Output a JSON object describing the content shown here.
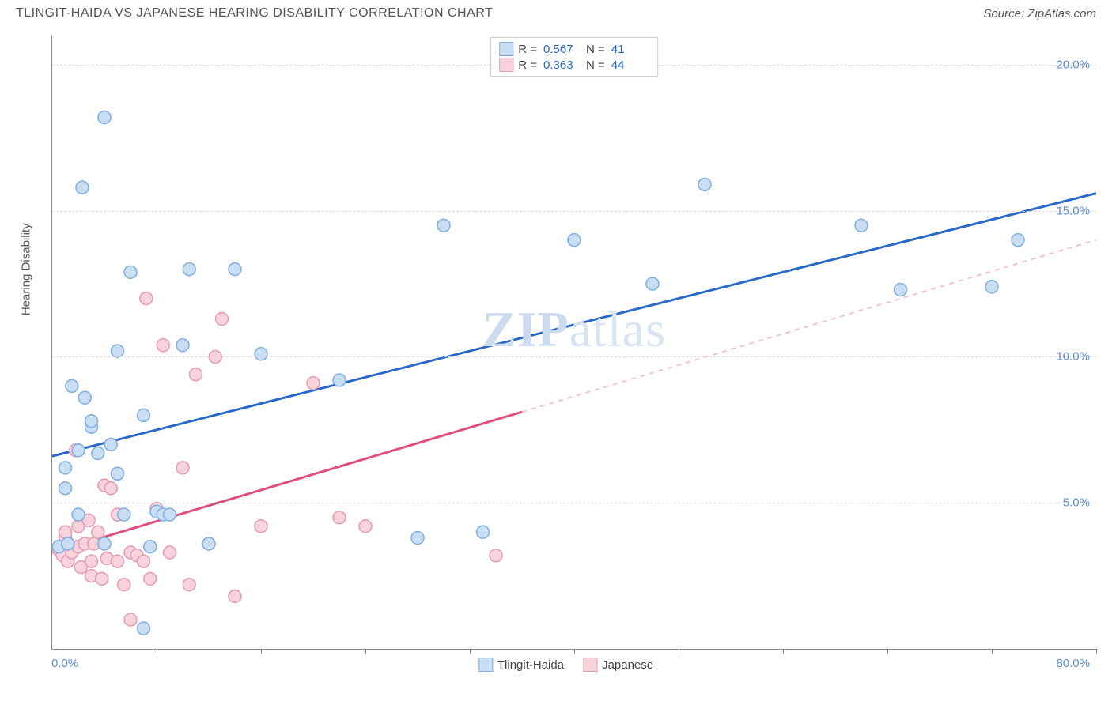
{
  "header": {
    "title": "TLINGIT-HAIDA VS JAPANESE HEARING DISABILITY CORRELATION CHART",
    "source": "Source: ZipAtlas.com"
  },
  "axes": {
    "y_label": "Hearing Disability",
    "xlim": [
      0,
      80
    ],
    "ylim": [
      0,
      21
    ],
    "x_min_label": "0.0%",
    "x_max_label": "80.0%",
    "y_ticks": [
      {
        "v": 5,
        "label": "5.0%"
      },
      {
        "v": 10,
        "label": "10.0%"
      },
      {
        "v": 15,
        "label": "15.0%"
      },
      {
        "v": 20,
        "label": "20.0%"
      }
    ],
    "x_tick_step": 8,
    "x_tick_count": 10,
    "grid_color": "#dddddd",
    "axis_color": "#888888",
    "background_color": "#ffffff",
    "tick_label_color": "#5b8fd6",
    "axis_label_color": "#555555"
  },
  "series": [
    {
      "key": "tlingit_haida",
      "label": "Tlingit-Haida",
      "marker_fill": "#c9ddf3",
      "marker_stroke": "#7eaee2",
      "marker_radius": 8,
      "line_color": "#2968c8",
      "line_width": 3,
      "dash_color": "#b7d0ef",
      "R_label": "R =",
      "N_label": "N =",
      "R": "0.567",
      "N": "41",
      "trend": {
        "x1": 0,
        "y1": 6.6,
        "x2": 80,
        "y2": 15.6,
        "solid_until_x": 80
      },
      "points": [
        [
          0.5,
          3.5
        ],
        [
          1,
          6.2
        ],
        [
          1,
          5.5
        ],
        [
          1.2,
          3.6
        ],
        [
          1.5,
          9.0
        ],
        [
          2,
          6.8
        ],
        [
          2,
          4.6
        ],
        [
          2.3,
          15.8
        ],
        [
          2.5,
          8.6
        ],
        [
          3,
          7.6
        ],
        [
          3,
          7.8
        ],
        [
          3.5,
          6.7
        ],
        [
          4,
          3.6
        ],
        [
          4,
          18.2
        ],
        [
          4.5,
          7.0
        ],
        [
          5,
          10.2
        ],
        [
          5,
          6.0
        ],
        [
          5.5,
          4.6
        ],
        [
          6,
          12.9
        ],
        [
          7,
          8.0
        ],
        [
          7.5,
          3.5
        ],
        [
          8,
          4.7
        ],
        [
          8.5,
          4.6
        ],
        [
          9,
          4.6
        ],
        [
          10,
          10.4
        ],
        [
          10.5,
          13.0
        ],
        [
          12,
          3.6
        ],
        [
          14,
          13.0
        ],
        [
          16,
          10.1
        ],
        [
          22,
          9.2
        ],
        [
          28,
          3.8
        ],
        [
          30,
          14.5
        ],
        [
          33,
          4.0
        ],
        [
          40,
          14.0
        ],
        [
          46,
          12.5
        ],
        [
          50,
          15.9
        ],
        [
          62,
          14.5
        ],
        [
          65,
          12.3
        ],
        [
          72,
          12.4
        ],
        [
          74,
          14.0
        ],
        [
          7,
          0.7
        ]
      ]
    },
    {
      "key": "japanese",
      "label": "Japanese",
      "marker_fill": "#f7d3dc",
      "marker_stroke": "#e69ab1",
      "marker_radius": 8,
      "line_color": "#e04f7a",
      "line_width": 3,
      "dash_color": "#f2c2ce",
      "R_label": "R =",
      "N_label": "N =",
      "R": "0.363",
      "N": "44",
      "trend": {
        "x1": 0,
        "y1": 3.3,
        "x2": 80,
        "y2": 14.0,
        "solid_until_x": 36
      },
      "points": [
        [
          0.5,
          3.4
        ],
        [
          0.8,
          3.2
        ],
        [
          1,
          3.8
        ],
        [
          1,
          4.0
        ],
        [
          1.2,
          3.0
        ],
        [
          1.5,
          3.3
        ],
        [
          1.8,
          6.8
        ],
        [
          2,
          3.5
        ],
        [
          2,
          4.2
        ],
        [
          2.2,
          2.8
        ],
        [
          2.5,
          3.6
        ],
        [
          2.8,
          4.4
        ],
        [
          3,
          3.0
        ],
        [
          3,
          2.5
        ],
        [
          3.2,
          3.6
        ],
        [
          3.5,
          4.0
        ],
        [
          3.8,
          2.4
        ],
        [
          4,
          5.6
        ],
        [
          4.2,
          3.1
        ],
        [
          4.5,
          5.5
        ],
        [
          5,
          3.0
        ],
        [
          5,
          4.6
        ],
        [
          5.5,
          2.2
        ],
        [
          6,
          3.3
        ],
        [
          6,
          1.0
        ],
        [
          6.5,
          3.2
        ],
        [
          7,
          3.0
        ],
        [
          7.2,
          12.0
        ],
        [
          7.5,
          2.4
        ],
        [
          8,
          4.8
        ],
        [
          8.5,
          10.4
        ],
        [
          9,
          3.3
        ],
        [
          10,
          6.2
        ],
        [
          10.5,
          2.2
        ],
        [
          11,
          9.4
        ],
        [
          12,
          3.6
        ],
        [
          12.5,
          10.0
        ],
        [
          13,
          11.3
        ],
        [
          14,
          1.8
        ],
        [
          16,
          4.2
        ],
        [
          20,
          9.1
        ],
        [
          22,
          4.5
        ],
        [
          24,
          4.2
        ],
        [
          34,
          3.2
        ]
      ]
    }
  ],
  "legend_top": {
    "swatch1_fill": "#c9ddf3",
    "swatch1_stroke": "#7eaee2",
    "swatch2_fill": "#f7d3dc",
    "swatch2_stroke": "#e69ab1"
  },
  "legend_bottom": {
    "items": [
      {
        "label": "Tlingit-Haida",
        "fill": "#c9ddf3",
        "stroke": "#7eaee2"
      },
      {
        "label": "Japanese",
        "fill": "#f7d3dc",
        "stroke": "#e69ab1"
      }
    ]
  },
  "watermark": {
    "zip": "ZIP",
    "rest": "atlas"
  }
}
